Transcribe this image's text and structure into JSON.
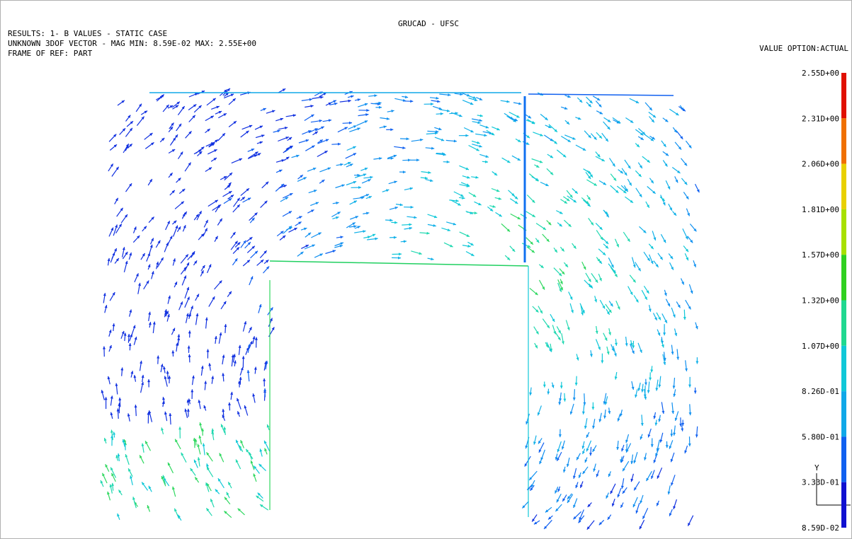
{
  "header": {
    "title": "GRUCAD - UFSC",
    "lines": [
      "RESULTS: 1- B VALUES - STATIC CASE",
      "UNKNOWN 3DOF VECTOR - MAG MIN: 8.59E-02 MAX: 2.55E+00",
      "FRAME OF REF: PART"
    ],
    "value_option": "VALUE OPTION:ACTUAL"
  },
  "legend": {
    "labels": [
      "2.55D+00",
      "2.31D+00",
      "2.06D+00",
      "1.81D+00",
      "1.57D+00",
      "1.32D+00",
      "1.07D+00",
      "8.26D-01",
      "5.80D-01",
      "3.33D-01",
      "8.59D-02"
    ],
    "colors": [
      "#e01000",
      "#f07000",
      "#e8d000",
      "#a8e000",
      "#30d020",
      "#20d890",
      "#10c8d8",
      "#10a8e8",
      "#1060f0",
      "#1010d0"
    ]
  },
  "triad": {
    "y_label": "Y"
  }
}
